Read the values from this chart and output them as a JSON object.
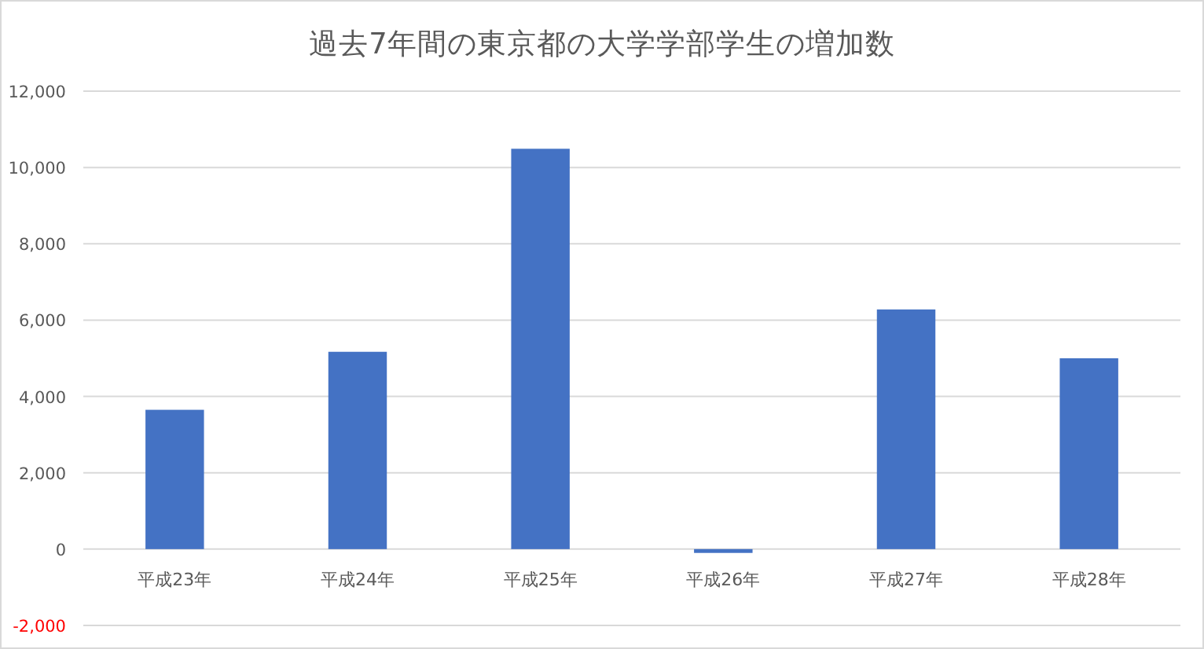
{
  "chart_data": {
    "type": "bar",
    "title": "過去7年間の東京都の大学学部学生の増加数",
    "categories": [
      "平成23年",
      "平成24年",
      "平成25年",
      "平成26年",
      "平成27年",
      "平成28年"
    ],
    "values": [
      3650,
      5170,
      10490,
      -100,
      6280,
      5000
    ],
    "color": "#4472c4",
    "ylim": [
      -2000,
      12000
    ],
    "yticks": [
      {
        "value": -2000,
        "label": "-2,000"
      },
      {
        "value": 0,
        "label": "0"
      },
      {
        "value": 2000,
        "label": "2,000"
      },
      {
        "value": 4000,
        "label": "4,000"
      },
      {
        "value": 6000,
        "label": "6,000"
      },
      {
        "value": 8000,
        "label": "8,000"
      },
      {
        "value": 10000,
        "label": "10,000"
      },
      {
        "value": 12000,
        "label": "12,000"
      }
    ],
    "grid": "y"
  }
}
